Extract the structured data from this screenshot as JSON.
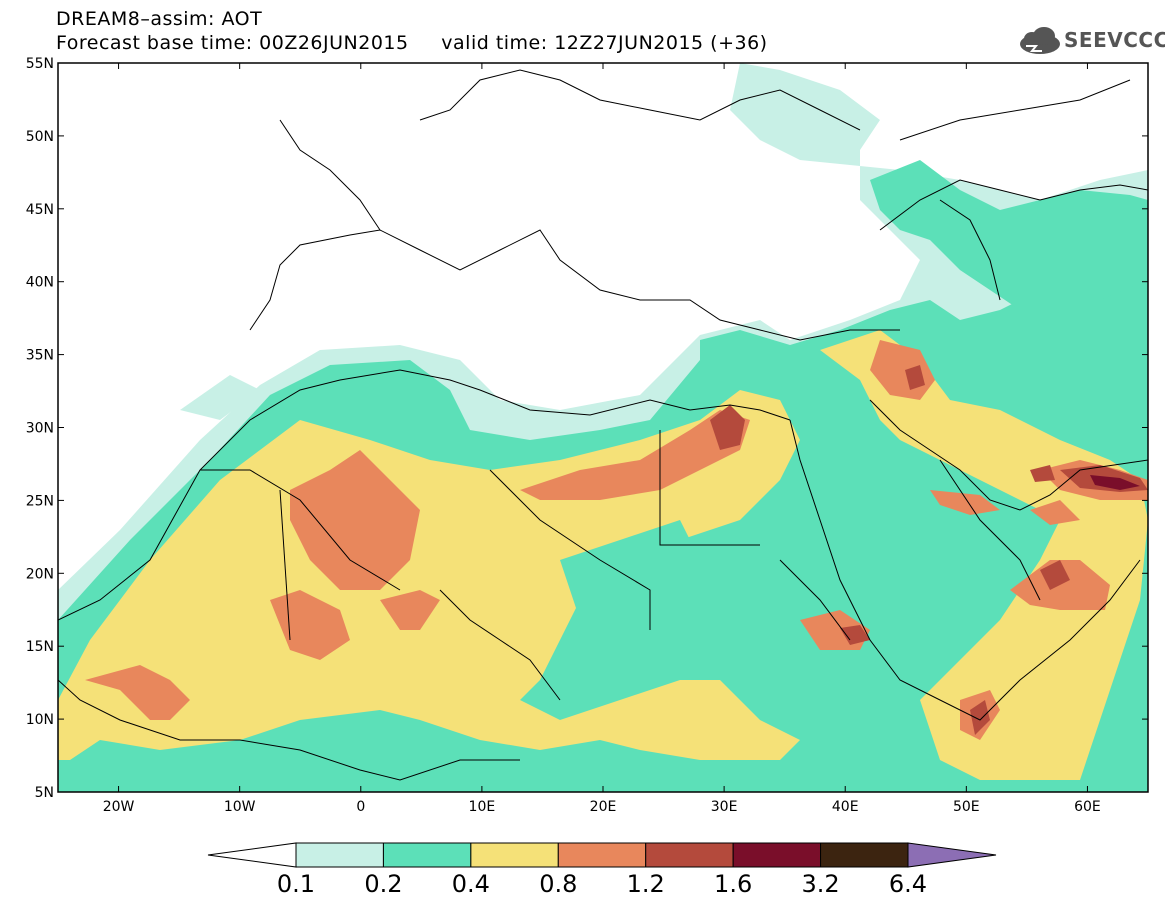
{
  "header": {
    "title": "DREAM8–assim: AOT",
    "subtitle": "Forecast base time: 00Z26JUN2015     valid time: 12Z27JUN2015 (+36)",
    "logo_text": "SEEVCCC"
  },
  "map": {
    "lat_labels": [
      "55N",
      "50N",
      "45N",
      "40N",
      "35N",
      "30N",
      "25N",
      "20N",
      "15N",
      "10N",
      "5N"
    ],
    "lon_labels": [
      "20W",
      "10W",
      "0",
      "10E",
      "20E",
      "30E",
      "40E",
      "50E",
      "60E"
    ],
    "extent": {
      "lon_min": -25,
      "lon_max": 65,
      "lat_min": 5,
      "lat_max": 55
    }
  },
  "colorbar": {
    "thresholds": [
      "0.1",
      "0.2",
      "0.4",
      "0.8",
      "1.2",
      "1.6",
      "3.2",
      "6.4"
    ],
    "colors": [
      "#ffffff",
      "#c8f0e6",
      "#5ce0b8",
      "#f5e178",
      "#e8875c",
      "#b44a3c",
      "#7a0e2a",
      "#3c2410",
      "#8c6eb4"
    ]
  },
  "colors": {
    "aot_0_1": "#c8f0e6",
    "aot_0_2": "#5ce0b8",
    "aot_0_4": "#f5e178",
    "aot_0_8": "#e8875c",
    "aot_1_2": "#b44a3c",
    "aot_1_6": "#7a0e2a"
  }
}
